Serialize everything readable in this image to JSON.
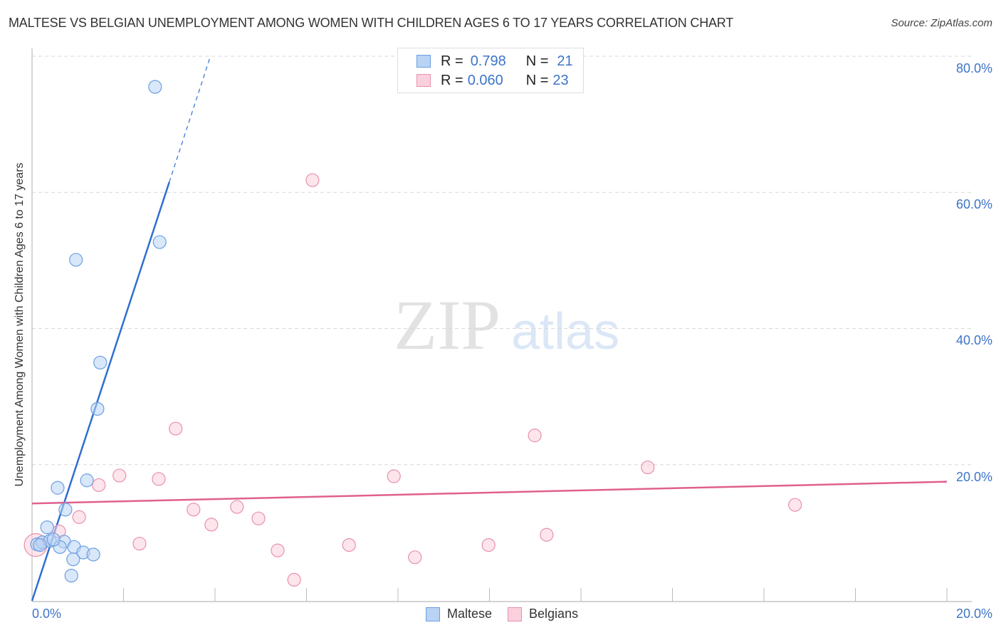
{
  "title": "MALTESE VS BELGIAN UNEMPLOYMENT AMONG WOMEN WITH CHILDREN AGES 6 TO 17 YEARS CORRELATION CHART",
  "source": "Source: ZipAtlas.com",
  "watermark": {
    "zip": "ZIP",
    "atlas": "atlas"
  },
  "y_axis_label": "Unemployment Among Women with Children Ages 6 to 17 years",
  "y_ticks": [
    "80.0%",
    "60.0%",
    "40.0%",
    "20.0%"
  ],
  "x_ticks": {
    "left": "0.0%",
    "right": "20.0%"
  },
  "stats_legend": [
    {
      "r_label": "R =",
      "r_value": "0.798",
      "n_label": "N =",
      "n_value": "21",
      "color": "#a9c8f0",
      "border": "#6b9fe0"
    },
    {
      "r_label": "R =",
      "r_value": "0.060",
      "n_label": "N =",
      "n_value": "23",
      "color": "#f8c4d4",
      "border": "#e890ae"
    }
  ],
  "series_legend": [
    {
      "name": "Maltese",
      "color": "#b9d3f5",
      "border": "#6b9fe0"
    },
    {
      "name": "Belgians",
      "color": "#fbd0dd",
      "border": "#e890ae"
    }
  ],
  "colors": {
    "blue_line": "#2f6fd0",
    "pink_line": "#e0608d",
    "grid": "#d8d8d8",
    "tick_text": "#3d74c9"
  },
  "chart_data": {
    "type": "scatter",
    "title": "MALTESE VS BELGIAN UNEMPLOYMENT AMONG WOMEN WITH CHILDREN AGES 6 TO 17 YEARS CORRELATION CHART",
    "xlabel": "",
    "ylabel": "Unemployment Among Women with Children Ages 6 to 17 years",
    "xlim": [
      0,
      20
    ],
    "ylim": [
      0,
      82
    ],
    "x_tick_labels": [
      "0.0%",
      "20.0%"
    ],
    "y_tick_labels": [
      "20.0%",
      "40.0%",
      "60.0%",
      "80.0%"
    ],
    "grid": true,
    "legend_position": "top-center and bottom",
    "series": [
      {
        "name": "Maltese",
        "r": 0.798,
        "n": 21,
        "points": [
          [
            2.69,
            75.5
          ],
          [
            2.79,
            52.7
          ],
          [
            0.96,
            50.1
          ],
          [
            1.49,
            35.0
          ],
          [
            1.43,
            28.2
          ],
          [
            1.2,
            17.7
          ],
          [
            0.56,
            16.6
          ],
          [
            0.73,
            13.4
          ],
          [
            0.33,
            10.8
          ],
          [
            0.11,
            8.3
          ],
          [
            0.23,
            8.6
          ],
          [
            0.39,
            8.8
          ],
          [
            0.7,
            8.7
          ],
          [
            0.61,
            7.9
          ],
          [
            0.92,
            7.9
          ],
          [
            1.12,
            7.1
          ],
          [
            1.34,
            6.8
          ],
          [
            0.9,
            6.1
          ],
          [
            0.86,
            3.7
          ],
          [
            0.47,
            9.0
          ],
          [
            0.17,
            8.2
          ]
        ],
        "trend": {
          "x0": 0,
          "y0": 0,
          "x1": 3.0,
          "y1": 61.5,
          "dashed_to": [
            3.9,
            80
          ]
        }
      },
      {
        "name": "Belgians",
        "r": 0.06,
        "n": 23,
        "points": [
          [
            6.13,
            61.8
          ],
          [
            3.14,
            25.3
          ],
          [
            10.99,
            24.3
          ],
          [
            13.46,
            19.6
          ],
          [
            1.91,
            18.4
          ],
          [
            7.91,
            18.3
          ],
          [
            2.77,
            17.9
          ],
          [
            1.46,
            17.0
          ],
          [
            16.68,
            14.1
          ],
          [
            3.53,
            13.4
          ],
          [
            4.48,
            13.8
          ],
          [
            4.95,
            12.1
          ],
          [
            1.03,
            12.3
          ],
          [
            3.92,
            11.2
          ],
          [
            0.59,
            10.2
          ],
          [
            11.25,
            9.7
          ],
          [
            2.35,
            8.4
          ],
          [
            6.93,
            8.2
          ],
          [
            9.98,
            8.2
          ],
          [
            5.37,
            7.4
          ],
          [
            8.37,
            6.4
          ],
          [
            5.73,
            3.1
          ],
          [
            0.08,
            8.2
          ]
        ],
        "trend": {
          "x0": 0,
          "y0": 14.3,
          "x1": 20,
          "y1": 17.5
        }
      }
    ]
  }
}
